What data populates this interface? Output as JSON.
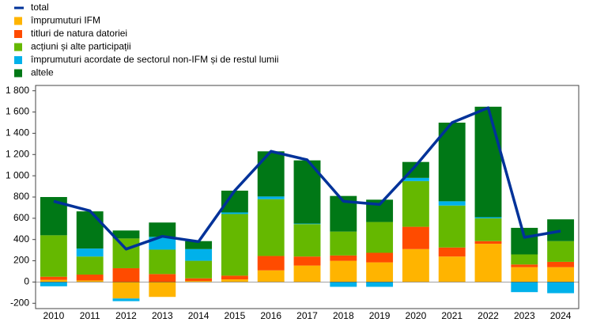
{
  "chart_data": {
    "type": "bar",
    "stacked": true,
    "categories": [
      "2010",
      "2011",
      "2012",
      "2013",
      "2014",
      "2015",
      "2016",
      "2017",
      "2018",
      "2019",
      "2020",
      "2021",
      "2022",
      "2023",
      "2024"
    ],
    "line": {
      "name": "total",
      "color": "#003299",
      "values": [
        760,
        670,
        310,
        430,
        380,
        860,
        1230,
        1150,
        760,
        730,
        1095,
        1500,
        1640,
        420,
        480
      ]
    },
    "series": [
      {
        "name": "împrumuturi IFM",
        "color": "#ffb400",
        "values": [
          20,
          15,
          -155,
          -140,
          10,
          25,
          110,
          155,
          200,
          185,
          310,
          240,
          360,
          140,
          140
        ]
      },
      {
        "name": "titluri de natura datoriei",
        "color": "#ff4b00",
        "values": [
          30,
          55,
          130,
          75,
          25,
          35,
          135,
          85,
          50,
          90,
          210,
          85,
          25,
          25,
          50
        ]
      },
      {
        "name": "acțiuni și alte participații",
        "color": "#65b800",
        "values": [
          390,
          170,
          280,
          230,
          165,
          580,
          535,
          305,
          225,
          290,
          430,
          395,
          215,
          95,
          195
        ]
      },
      {
        "name": "împrumuturi acordate de sectorul non-IFM și de restul lumii",
        "color": "#00b1ea",
        "values": [
          -40,
          75,
          -25,
          120,
          110,
          15,
          25,
          5,
          -45,
          -45,
          30,
          40,
          10,
          -95,
          -105
        ]
      },
      {
        "name": "altele",
        "color": "#007816",
        "values": [
          360,
          350,
          75,
          135,
          75,
          205,
          425,
          595,
          335,
          210,
          150,
          740,
          1040,
          250,
          205
        ]
      }
    ],
    "ylim": [
      -250,
      1850
    ],
    "yticks": [
      -200,
      0,
      200,
      400,
      600,
      800,
      {
        "value": 1000,
        "label": "1 000"
      },
      {
        "value": 1200,
        "label": "1 200"
      },
      {
        "value": 1400,
        "label": "1 400"
      },
      {
        "value": 1600,
        "label": "1 600"
      },
      {
        "value": 1800,
        "label": "1 800"
      }
    ],
    "grid": false,
    "legend": "top-left"
  }
}
